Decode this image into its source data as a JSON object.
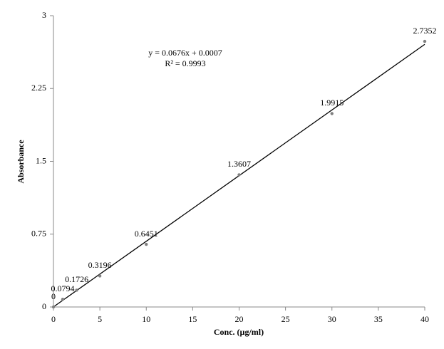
{
  "chart_data": {
    "type": "scatter",
    "x_label": "Conc. (µg/ml)",
    "y_label": "Absorbance",
    "x": [
      0,
      1,
      2.5,
      5,
      10,
      20,
      30,
      40
    ],
    "values": [
      0,
      0.0794,
      0.1726,
      0.3196,
      0.6451,
      1.3607,
      1.9915,
      2.7352
    ],
    "color": "#808080",
    "trendline": {
      "equation": "y = 0.0676x + 0.0007",
      "r_squared": "R² = 0.9993",
      "slope": 0.0676,
      "intercept": 0.0007,
      "color": "#000000"
    },
    "xlim": [
      0,
      40
    ],
    "xticks": [
      0,
      5,
      10,
      15,
      20,
      25,
      30,
      35,
      40
    ],
    "ylim": [
      0,
      3
    ],
    "yticks": [
      0,
      0.75,
      1.5,
      2.25,
      3
    ],
    "grid": false
  }
}
